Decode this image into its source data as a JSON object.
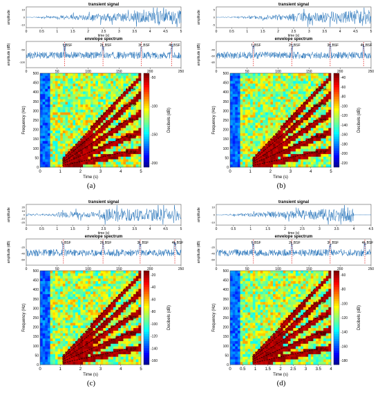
{
  "labels": {
    "transient_title": "transient signal",
    "envelope_title": "envelope spectrum",
    "time_label": "time (s)",
    "amplitude_label": "amplitude",
    "amplitude_db_label": "amplitude (dB)",
    "frequency_hz_label": "Frequency (Hz)",
    "time_s_label": "Time (s)",
    "decibels_label": "Decibels (dB)"
  },
  "panels": [
    {
      "id": "a",
      "caption": "(a)",
      "transient": {
        "xlim": [
          0,
          5
        ],
        "xticks": [
          "0",
          "0.5",
          "1",
          "1.5",
          "2",
          "2.5",
          "3",
          "3.5",
          "4",
          "4.5",
          "5"
        ],
        "yticks": [
          "10",
          "0",
          "-10"
        ],
        "noise": 1.0,
        "bursts": "many"
      },
      "envelope": {
        "xlim": [
          0,
          250
        ],
        "xticks": [
          "0",
          "50",
          "100",
          "150",
          "200",
          "250"
        ],
        "yticks": [
          "-50",
          "-100"
        ],
        "annotations": [
          "f_BSF",
          "2f_BSF",
          "3f_BSF",
          "4f_BSF"
        ],
        "markers": [
          62,
          124,
          186,
          235
        ]
      },
      "spectrogram": {
        "xticks": [
          "0",
          "1",
          "2",
          "3",
          "4",
          "5"
        ],
        "yticks": [
          "500",
          "450",
          "400",
          "350",
          "300",
          "250",
          "200",
          "150",
          "100",
          "50",
          "0"
        ],
        "cbar_ticks": [
          "-50",
          "-100",
          "-150",
          "-200"
        ],
        "harmonic_labels": [
          "3f_BSF",
          "4f_BSF",
          "f_BSF",
          "2f_BSF",
          "f_BSF"
        ]
      }
    },
    {
      "id": "b",
      "caption": "(b)",
      "transient": {
        "xlim": [
          0,
          5
        ],
        "xticks": [
          "0",
          "0.5",
          "1",
          "1.5",
          "2",
          "2.5",
          "3",
          "3.5",
          "4",
          "4.5",
          "5"
        ],
        "yticks": [
          "5",
          "0",
          "-5"
        ]
      },
      "envelope": {
        "xlim": [
          0,
          250
        ],
        "xticks": [
          "0",
          "50",
          "100",
          "150",
          "200",
          "250"
        ],
        "yticks": [
          "-40",
          "-60",
          "-80"
        ],
        "annotations": [
          "f_BSF",
          "2f_BSF",
          "3f_BSF",
          "4f_BSF"
        ],
        "markers": [
          60,
          122,
          184,
          238
        ]
      },
      "spectrogram": {
        "xticks": [
          "0",
          "1",
          "2",
          "3",
          "4",
          "5"
        ],
        "yticks": [
          "500",
          "450",
          "400",
          "350",
          "300",
          "250",
          "200",
          "150",
          "100",
          "50",
          "0"
        ],
        "cbar_ticks": [
          "-40",
          "-60",
          "-80",
          "-100",
          "-120",
          "-140",
          "-160",
          "-180",
          "-200",
          "-220"
        ],
        "harmonic_labels": [
          "8f_BSF",
          "6f_BSF",
          "4f_BSF",
          "3f_BSF",
          "2f_BSF"
        ]
      }
    },
    {
      "id": "c",
      "caption": "(c)",
      "transient": {
        "xlim": [
          0,
          5
        ],
        "xticks": [
          "0",
          "0.5",
          "1",
          "1.5",
          "2",
          "2.5",
          "3",
          "3.5",
          "4",
          "4.5",
          "5"
        ],
        "yticks": [
          "20",
          "10",
          "0",
          "-10",
          "-20"
        ]
      },
      "envelope": {
        "xlim": [
          0,
          250
        ],
        "xticks": [
          "0",
          "50",
          "100",
          "150",
          "200",
          "250"
        ],
        "yticks": [
          "-20",
          "-40",
          "-60"
        ],
        "annotations": [
          "f_BSF",
          "2f_BSF",
          "3f_BSF",
          "4f_BSF"
        ],
        "markers": [
          60,
          124,
          184,
          240
        ]
      },
      "spectrogram": {
        "xticks": [
          "0",
          "1",
          "2",
          "3",
          "4",
          "5"
        ],
        "yticks": [
          "500",
          "450",
          "400",
          "350",
          "300",
          "250",
          "200",
          "150",
          "100",
          "50",
          "0"
        ],
        "cbar_ticks": [
          "-20",
          "-40",
          "-60",
          "-80",
          "-100",
          "-120",
          "-140",
          "-160"
        ],
        "harmonic_labels": [
          "4f_BSF",
          "3f_BSF",
          "2f_BSF",
          "f_BSF"
        ]
      }
    },
    {
      "id": "d",
      "caption": "(d)",
      "transient": {
        "xlim": [
          0,
          4.5
        ],
        "xticks": [
          "0",
          "0.5",
          "1",
          "1.5",
          "2",
          "2.5",
          "3",
          "3.5",
          "4",
          "4.5"
        ],
        "yticks": [
          "10",
          "0",
          "-10"
        ]
      },
      "envelope": {
        "xlim": [
          0,
          250
        ],
        "xticks": [
          "0",
          "50",
          "100",
          "150",
          "200",
          "250"
        ],
        "yticks": [
          "-20",
          "-40",
          "-60"
        ],
        "annotations": [
          "f_BSF",
          "2f_BSF",
          "3f_BSF",
          "4f_BSF"
        ],
        "markers": [
          60,
          122,
          184,
          240
        ]
      },
      "spectrogram": {
        "xticks": [
          "0",
          "0.5",
          "1",
          "1.5",
          "2",
          "2.5",
          "3",
          "3.5",
          "4"
        ],
        "yticks": [
          "500",
          "450",
          "400",
          "350",
          "300",
          "250",
          "200",
          "150",
          "100",
          "50",
          "0"
        ],
        "cbar_ticks": [
          "-60",
          "-80",
          "-100",
          "-120",
          "-140",
          "-160",
          "-180"
        ],
        "harmonic_labels": [
          "4f_BSF",
          "3f_BSF",
          "2f_BSF",
          "f_BSF"
        ]
      }
    }
  ]
}
